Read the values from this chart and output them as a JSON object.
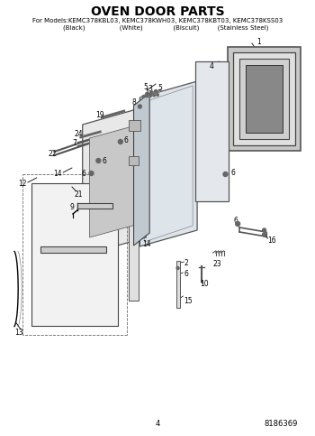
{
  "title": "OVEN DOOR PARTS",
  "subtitle_line1": "For Models:KEMC378KBL03, KEMC378KWH03, KEMC378KBT03, KEMC378KSS03",
  "subtitle_line2": "        (Black)                 (White)               (Biscuit)         (Stainless Steel)",
  "page_number": "4",
  "part_number": "8186369",
  "bg_color": "#ffffff",
  "fig_width": 3.5,
  "fig_height": 4.83,
  "dpi": 100
}
